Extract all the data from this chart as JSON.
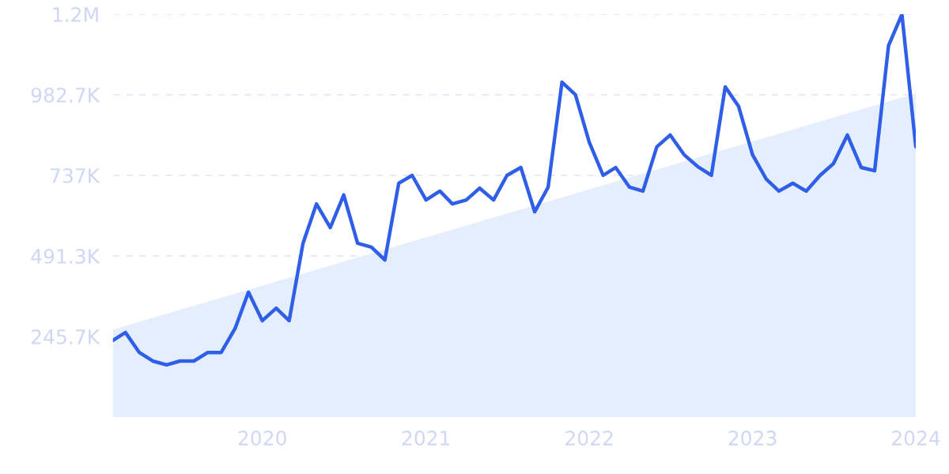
{
  "chart_data": {
    "type": "line",
    "x": [
      "2019-02",
      "2019-03",
      "2019-04",
      "2019-05",
      "2019-06",
      "2019-07",
      "2019-08",
      "2019-09",
      "2019-10",
      "2019-11",
      "2019-12",
      "2020-01",
      "2020-02",
      "2020-03",
      "2020-04",
      "2020-05",
      "2020-06",
      "2020-07",
      "2020-08",
      "2020-09",
      "2020-10",
      "2020-11",
      "2020-12",
      "2021-01",
      "2021-02",
      "2021-03",
      "2021-04",
      "2021-05",
      "2021-06",
      "2021-07",
      "2021-08",
      "2021-09",
      "2021-10",
      "2021-11",
      "2021-12",
      "2022-01",
      "2022-02",
      "2022-03",
      "2022-04",
      "2022-05",
      "2022-06",
      "2022-07",
      "2022-08",
      "2022-09",
      "2022-10",
      "2022-11",
      "2022-12",
      "2023-01",
      "2023-02",
      "2023-03",
      "2023-04",
      "2023-05",
      "2023-06",
      "2023-07",
      "2023-08",
      "2023-09",
      "2023-10",
      "2023-11",
      "2023-12",
      "2024-01"
    ],
    "series": [
      {
        "type": "area",
        "color": "#e4eefc",
        "x": [
          "2019-02",
          "2024-01"
        ],
        "values": [
          267000,
          987000
        ]
      },
      {
        "color": "#2f5ee8",
        "values": [
          234000,
          258000,
          197000,
          171000,
          159000,
          171000,
          171000,
          197000,
          197000,
          270000,
          381000,
          294000,
          332000,
          294000,
          530000,
          650000,
          578000,
          677000,
          530000,
          518000,
          479000,
          713000,
          737000,
          662000,
          689000,
          650000,
          662000,
          698000,
          662000,
          737000,
          761000,
          626000,
          701000,
          1021000,
          983000,
          838000,
          737000,
          761000,
          701000,
          689000,
          824000,
          860000,
          800000,
          763000,
          737000,
          1007000,
          947000,
          800000,
          725000,
          689000,
          713000,
          689000,
          737000,
          773000,
          860000,
          761000,
          751000,
          1132000,
          1228000,
          824000
        ]
      }
    ],
    "xlim": [
      "2019-02",
      "2024-01"
    ],
    "xticks": [
      {
        "value": "2020",
        "label": "2020"
      },
      {
        "value": "2021",
        "label": "2021"
      },
      {
        "value": "2022",
        "label": "2022"
      },
      {
        "value": "2023",
        "label": "2023"
      },
      {
        "value": "2024",
        "label": "2024"
      }
    ],
    "ylim": [
      0,
      1228300
    ],
    "yticks": [
      {
        "value": 245700,
        "label": "245.7K"
      },
      {
        "value": 491300,
        "label": "491.3K"
      },
      {
        "value": 737000,
        "label": "737K"
      },
      {
        "value": 982700,
        "label": "982.7K"
      },
      {
        "value": 1228300,
        "label": "1.2M"
      }
    ],
    "grid": "y",
    "line_style": "solid",
    "marker": "none"
  }
}
